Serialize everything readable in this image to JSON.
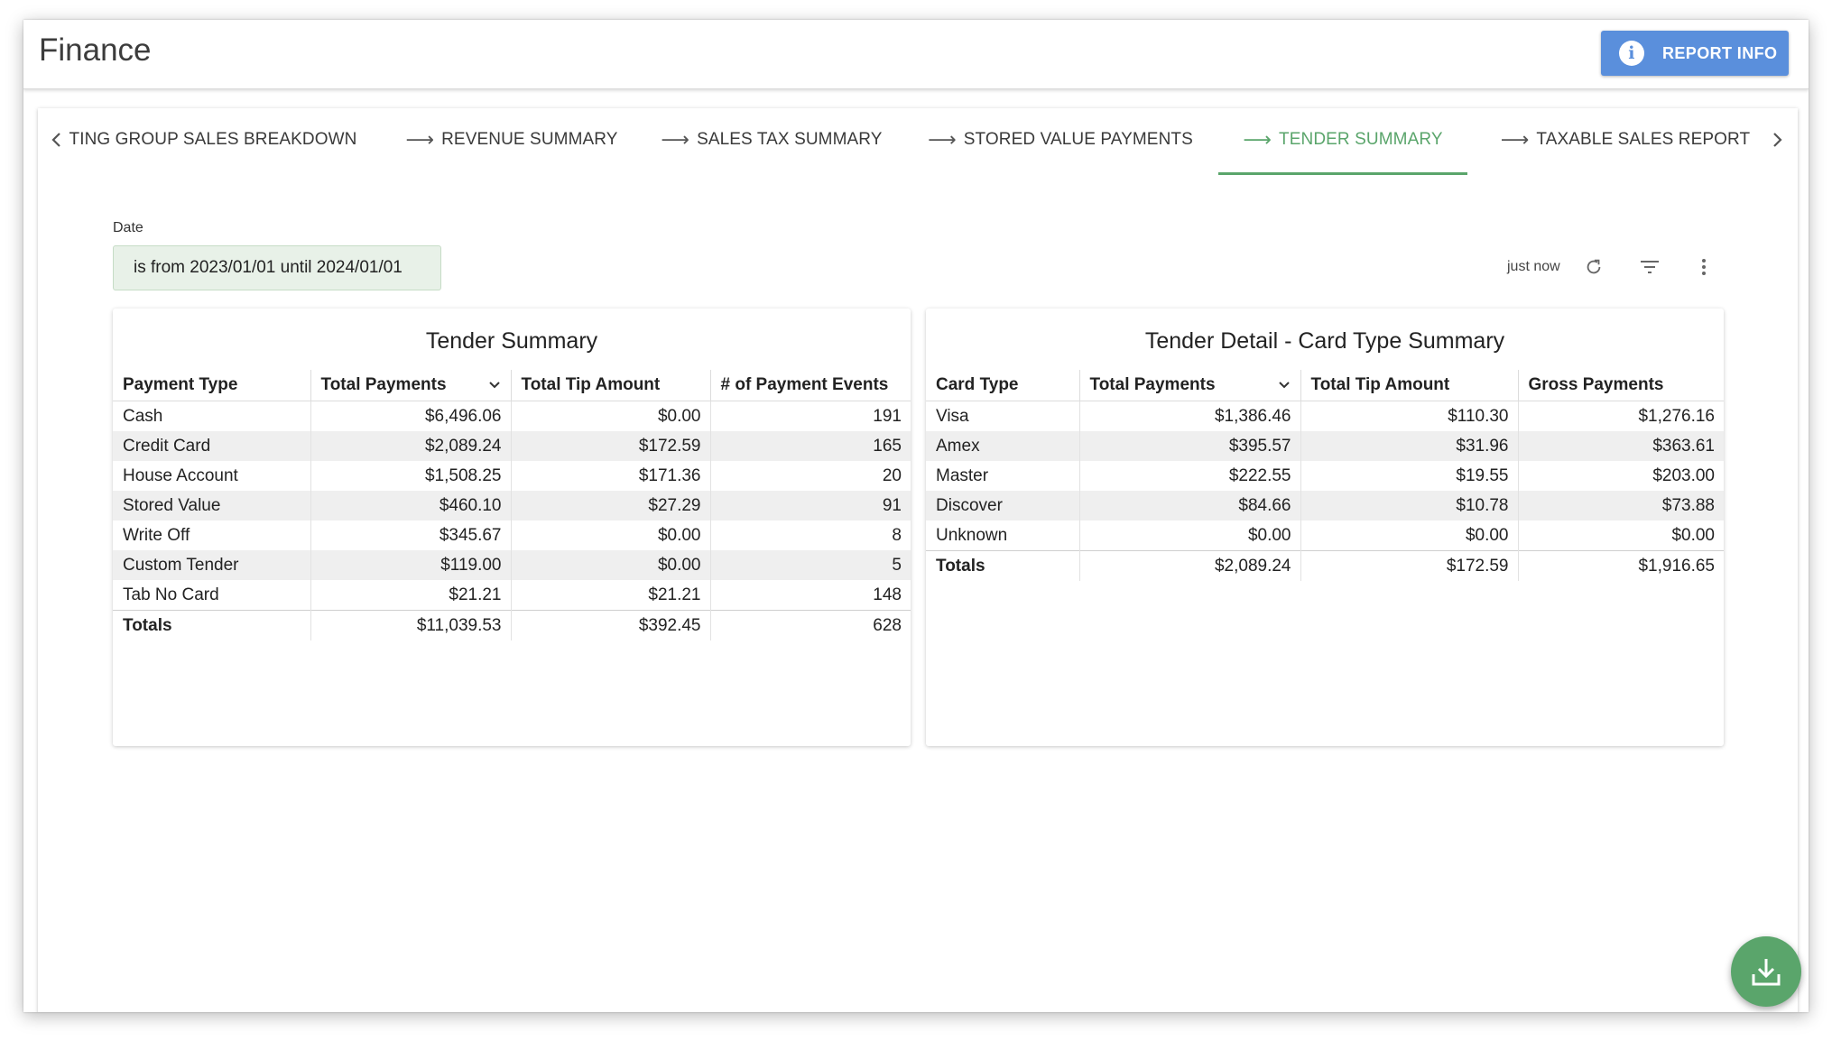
{
  "app": {
    "title": "Finance",
    "report_info_label": "REPORT INFO"
  },
  "tabs": [
    {
      "label": "TING GROUP SALES BREAKDOWN",
      "active": false
    },
    {
      "label": "REVENUE SUMMARY",
      "active": false
    },
    {
      "label": "SALES TAX SUMMARY",
      "active": false
    },
    {
      "label": "STORED VALUE PAYMENTS",
      "active": false
    },
    {
      "label": "TENDER SUMMARY",
      "active": true
    },
    {
      "label": "TAXABLE SALES REPORT",
      "active": false
    }
  ],
  "filter": {
    "label": "Date",
    "value": "is from 2023/01/01 until 2024/01/01"
  },
  "toolbar": {
    "refresh_text": "just now"
  },
  "colors": {
    "accent": "#5aa56b",
    "button": "#5a8fdc",
    "row_alt": "#efefef"
  },
  "tender_summary": {
    "title": "Tender Summary",
    "columns": [
      "Payment Type",
      "Total Payments",
      "Total Tip Amount",
      "# of Payment Events"
    ],
    "rows": [
      [
        "Cash",
        "$6,496.06",
        "$0.00",
        "191"
      ],
      [
        "Credit Card",
        "$2,089.24",
        "$172.59",
        "165"
      ],
      [
        "House Account",
        "$1,508.25",
        "$171.36",
        "20"
      ],
      [
        "Stored Value",
        "$460.10",
        "$27.29",
        "91"
      ],
      [
        "Write Off",
        "$345.67",
        "$0.00",
        "8"
      ],
      [
        "Custom Tender",
        "$119.00",
        "$0.00",
        "5"
      ],
      [
        "Tab No Card",
        "$21.21",
        "$21.21",
        "148"
      ]
    ],
    "totals": [
      "Totals",
      "$11,039.53",
      "$392.45",
      "628"
    ]
  },
  "card_type_summary": {
    "title": "Tender Detail - Card Type Summary",
    "columns": [
      "Card Type",
      "Total Payments",
      "Total Tip Amount",
      "Gross Payments"
    ],
    "rows": [
      [
        "Visa",
        "$1,386.46",
        "$110.30",
        "$1,276.16"
      ],
      [
        "Amex",
        "$395.57",
        "$31.96",
        "$363.61"
      ],
      [
        "Master",
        "$222.55",
        "$19.55",
        "$203.00"
      ],
      [
        "Discover",
        "$84.66",
        "$10.78",
        "$73.88"
      ],
      [
        "Unknown",
        "$0.00",
        "$0.00",
        "$0.00"
      ]
    ],
    "totals": [
      "Totals",
      "$2,089.24",
      "$172.59",
      "$1,916.65"
    ]
  }
}
